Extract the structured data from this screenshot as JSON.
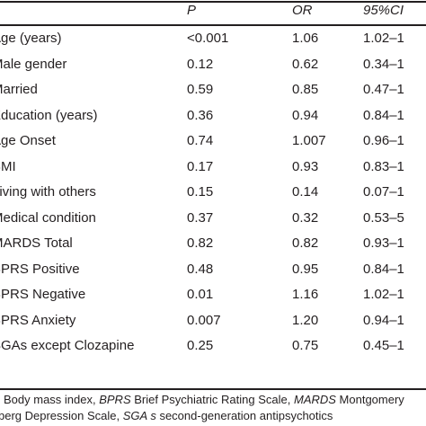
{
  "table": {
    "headers": {
      "label": "",
      "p": "P",
      "or": "OR",
      "ci": "95%CI"
    },
    "rows": [
      {
        "label": "Age (years)",
        "p": "<0.001",
        "or": "1.06",
        "ci": "1.02–1"
      },
      {
        "label": "Male gender",
        "p": "0.12",
        "or": "0.62",
        "ci": "0.34–1"
      },
      {
        "label": "Married",
        "p": "0.59",
        "or": "0.85",
        "ci": "0.47–1"
      },
      {
        "label": "Education (years)",
        "p": "0.36",
        "or": "0.94",
        "ci": "0.84–1"
      },
      {
        "label": "Age Onset",
        "p": "0.74",
        "or": "1.007",
        "ci": "0.96–1"
      },
      {
        "label": "BMI",
        "p": "0.17",
        "or": "0.93",
        "ci": "0.83–1"
      },
      {
        "label": "Living with others",
        "p": "0.15",
        "or": "0.14",
        "ci": "0.07–1"
      },
      {
        "label": "Medical condition",
        "p": "0.37",
        "or": "0.32",
        "ci": "0.53–5"
      },
      {
        "label": "MARDS Total",
        "p": "0.82",
        "or": "0.82",
        "ci": "0.93–1"
      },
      {
        "label": "BPRS Positive",
        "p": "0.48",
        "or": "0.95",
        "ci": "0.84–1"
      },
      {
        "label": "BPRS Negative",
        "p": "0.01",
        "or": "1.16",
        "ci": "1.02–1"
      },
      {
        "label": "BPRS Anxiety",
        "p": "0.007",
        "or": "1.20",
        "ci": "0.94–1"
      },
      {
        "label": "SGAs except Clozapine",
        "p": "0.25",
        "or": "0.75",
        "ci": "0.45–1"
      }
    ]
  },
  "footnote": {
    "line1": [
      {
        "text": "Body mass index, ",
        "italic": false
      },
      {
        "text": "BPRS",
        "italic": true
      },
      {
        "text": " Brief Psychiatric Rating Scale, ",
        "italic": false
      },
      {
        "text": "MARDS",
        "italic": true
      },
      {
        "text": " Montgomery",
        "italic": false
      }
    ],
    "line2": [
      {
        "text": "berg Depression Scale, ",
        "italic": false
      },
      {
        "text": "SGA s",
        "italic": true
      },
      {
        "text": " second-generation antipsychotics",
        "italic": false
      }
    ]
  }
}
